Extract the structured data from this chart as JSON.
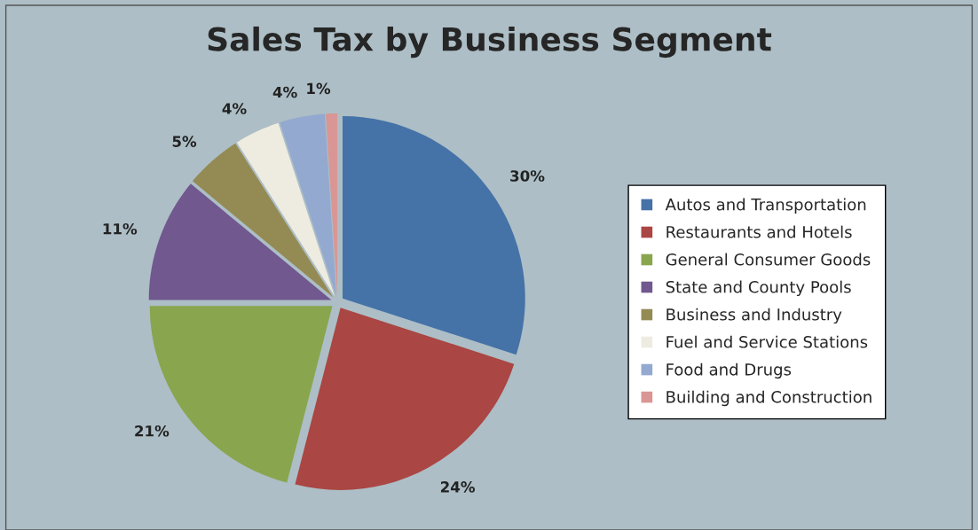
{
  "chart_data": {
    "type": "pie",
    "title": "Sales Tax by Business Segment",
    "categories": [
      "Autos and Transportation",
      "Restaurants and Hotels",
      "General Consumer Goods",
      "State and County Pools",
      "Business and Industry",
      "Fuel and Service Stations",
      "Food and Drugs",
      "Building and Construction"
    ],
    "values": [
      30,
      24,
      21,
      11,
      5,
      4,
      4,
      1
    ],
    "value_labels": [
      "30%",
      "24%",
      "21%",
      "11%",
      "5%",
      "4%",
      "4%",
      "1%"
    ],
    "colors": [
      "#4572a7",
      "#aa4643",
      "#89a54e",
      "#71588f",
      "#948a54",
      "#eeece1",
      "#93a9cf",
      "#d99694"
    ],
    "legend": "right"
  }
}
